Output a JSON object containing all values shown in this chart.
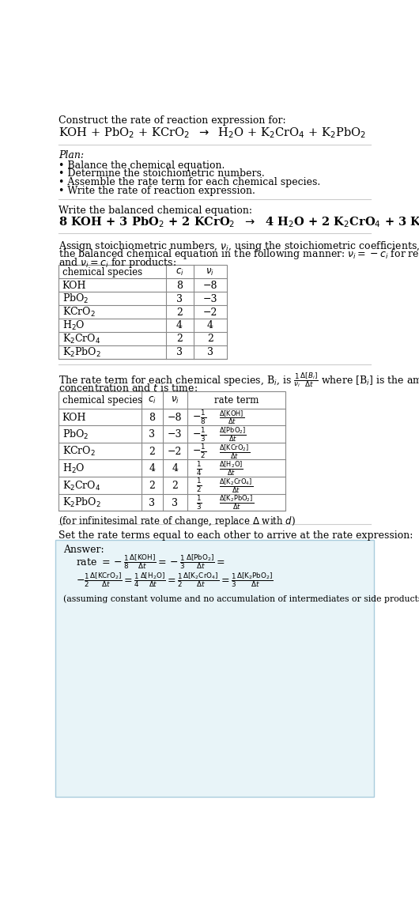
{
  "title_line1": "Construct the rate of reaction expression for:",
  "plan_header": "Plan:",
  "plan_items": [
    "• Balance the chemical equation.",
    "• Determine the stoichiometric numbers.",
    "• Assemble the rate term for each chemical species.",
    "• Write the rate of reaction expression."
  ],
  "balanced_header": "Write the balanced chemical equation:",
  "assign_text_a": "Assign stoichiometric numbers, $\\nu_i$, using the stoichiometric coefficients, $c_i$, from",
  "assign_text_b": "the balanced chemical equation in the following manner: $\\nu_i = -c_i$ for reactants",
  "assign_text_c": "and $\\nu_i = c_i$ for products:",
  "rate_text_a": "The rate term for each chemical species, B$_i$, is $\\frac{1}{\\nu_i}\\frac{\\Delta[B_i]}{\\Delta t}$ where [B$_i$] is the amount",
  "rate_text_b": "concentration and $t$ is time:",
  "infinitesimal_note": "(for infinitesimal rate of change, replace $\\Delta$ with $d$)",
  "set_equal_text": "Set the rate terms equal to each other to arrive at the rate expression:",
  "answer_label": "Answer:",
  "assuming_note": "(assuming constant volume and no accumulation of intermediates or side products)",
  "table1_headers": [
    "chemical species",
    "$c_i$",
    "$\\nu_i$"
  ],
  "table1_rows": [
    [
      "KOH",
      "8",
      "−8"
    ],
    [
      "PbO$_2$",
      "3",
      "−3"
    ],
    [
      "KCrO$_2$",
      "2",
      "−2"
    ],
    [
      "H$_2$O",
      "4",
      "4"
    ],
    [
      "K$_2$CrO$_4$",
      "2",
      "2"
    ],
    [
      "K$_2$PbO$_2$",
      "3",
      "3"
    ]
  ],
  "table2_headers": [
    "chemical species",
    "$c_i$",
    "$\\nu_i$",
    "rate term"
  ],
  "table2_species": [
    "KOH",
    "PbO$_2$",
    "KCrO$_2$",
    "H$_2$O",
    "K$_2$CrO$_4$",
    "K$_2$PbO$_2$"
  ],
  "table2_ci": [
    "8",
    "3",
    "2",
    "4",
    "2",
    "3"
  ],
  "table2_nu": [
    "−8",
    "−3",
    "−2",
    "4",
    "2",
    "3"
  ],
  "table2_frac": [
    "$-\\frac{1}{8}$",
    "$-\\frac{1}{3}$",
    "$-\\frac{1}{2}$",
    "$\\frac{1}{4}$",
    "$\\frac{1}{2}$",
    "$\\frac{1}{3}$"
  ],
  "table2_delta": [
    "$\\frac{\\Delta[\\mathrm{KOH}]}{\\Delta t}$",
    "$\\frac{\\Delta[\\mathrm{PbO}_2]}{\\Delta t}$",
    "$\\frac{\\Delta[\\mathrm{KCrO}_2]}{\\Delta t}$",
    "$\\frac{\\Delta[\\mathrm{H}_2\\mathrm{O}]}{\\Delta t}$",
    "$\\frac{\\Delta[\\mathrm{K}_2\\mathrm{CrO}_4]}{\\Delta t}$",
    "$\\frac{\\Delta[\\mathrm{K}_2\\mathrm{PbO}_2]}{\\Delta t}$"
  ],
  "bg_color": "#ffffff",
  "text_color": "#000000",
  "table_border_color": "#888888",
  "answer_bg_color": "#e8f4f8",
  "answer_border_color": "#aaccdd",
  "hline_color": "#cccccc"
}
